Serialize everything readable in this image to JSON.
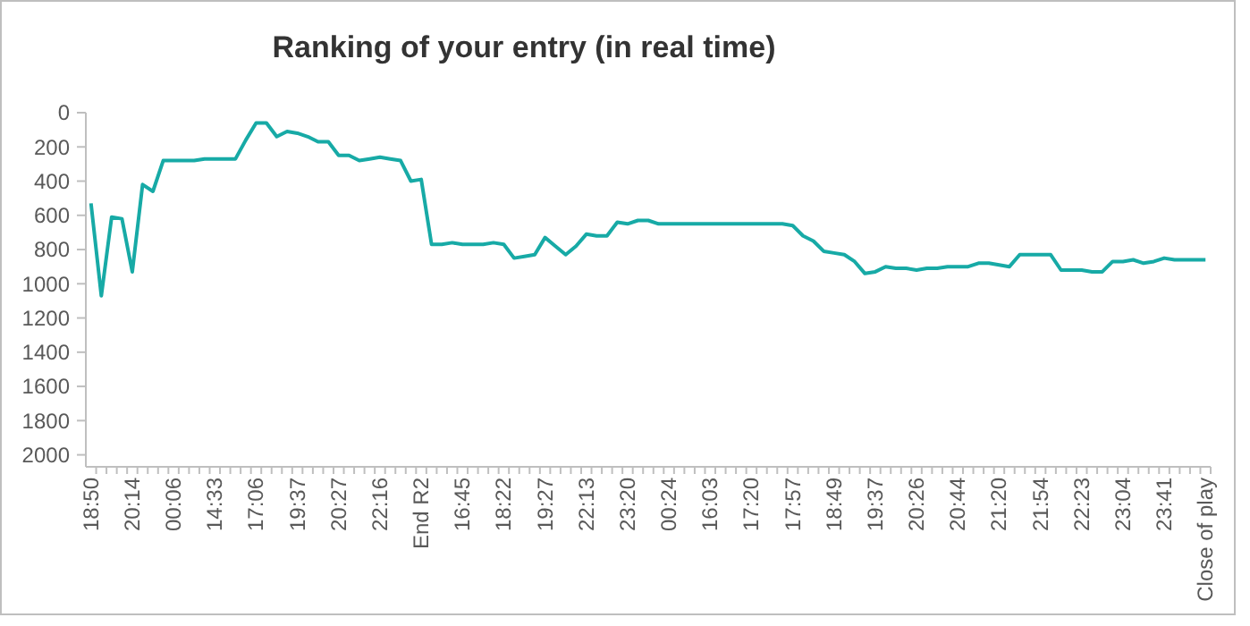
{
  "chart_data": {
    "type": "line",
    "title": "Ranking of your entry (in real time)",
    "categories": [
      "18:50",
      null,
      null,
      null,
      "20:14",
      null,
      null,
      null,
      "00:06",
      null,
      null,
      null,
      "14:33",
      null,
      null,
      null,
      "17:06",
      null,
      null,
      null,
      "19:37",
      null,
      null,
      null,
      "20:27",
      null,
      null,
      null,
      "22:16",
      null,
      null,
      null,
      "End R2",
      null,
      null,
      null,
      "16:45",
      null,
      null,
      null,
      "18:22",
      null,
      null,
      null,
      "19:27",
      null,
      null,
      null,
      "22:13",
      null,
      null,
      null,
      "23:20",
      null,
      null,
      null,
      "00:24",
      null,
      null,
      null,
      "16:03",
      null,
      null,
      null,
      "17:20",
      null,
      null,
      null,
      "17:57",
      null,
      null,
      null,
      "18:49",
      null,
      null,
      null,
      "19:37",
      null,
      null,
      null,
      "20:26",
      null,
      null,
      null,
      "20:44",
      null,
      null,
      null,
      "21:20",
      null,
      null,
      null,
      "21:54",
      null,
      null,
      null,
      "22:23",
      null,
      null,
      null,
      "23:04",
      null,
      null,
      null,
      "23:41",
      null,
      null,
      null,
      "Close of play"
    ],
    "series": [
      {
        "color": "#17aaa6",
        "values": [
          530,
          1070,
          610,
          620,
          930,
          420,
          460,
          280,
          280,
          280,
          280,
          270,
          270,
          270,
          270,
          160,
          60,
          60,
          140,
          110,
          120,
          140,
          170,
          170,
          250,
          250,
          280,
          270,
          260,
          270,
          280,
          400,
          390,
          770,
          770,
          760,
          770,
          770,
          770,
          760,
          770,
          850,
          840,
          830,
          730,
          780,
          830,
          780,
          710,
          720,
          720,
          640,
          650,
          630,
          630,
          650,
          650,
          650,
          650,
          650,
          650,
          650,
          650,
          650,
          650,
          650,
          650,
          650,
          660,
          720,
          750,
          810,
          820,
          830,
          870,
          940,
          930,
          900,
          910,
          910,
          920,
          910,
          910,
          900,
          900,
          900,
          880,
          880,
          890,
          900,
          830,
          830,
          830,
          830,
          920,
          920,
          920,
          930,
          930,
          870,
          870,
          860,
          880,
          870,
          850,
          860,
          860,
          860,
          860
        ]
      }
    ],
    "ylim": [
      2070,
      0
    ],
    "yticks": [
      0,
      200,
      400,
      600,
      800,
      1000,
      1200,
      1400,
      1600,
      1800,
      2000
    ],
    "grid": false,
    "marker": "none",
    "line_style": "solid"
  }
}
